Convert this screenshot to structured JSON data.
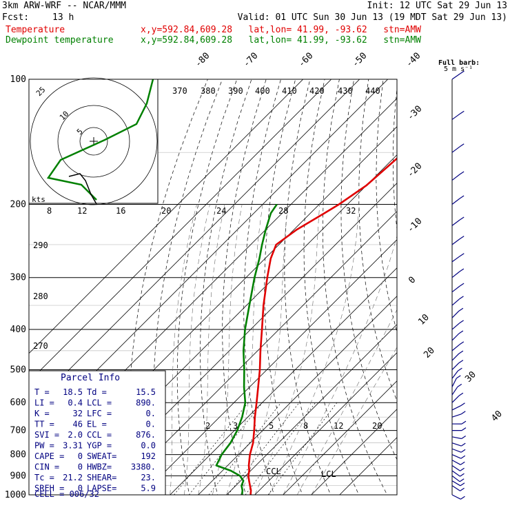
{
  "header": {
    "model": "3km ARW-WRF -- NCAR/MMM",
    "init": "Init: 12 UTC Sat 29 Jun 13",
    "fcst_label": "Fcst:",
    "fcst_value": "13 h",
    "valid": "Valid: 01 UTC Sun 30 Jun 13 (19 MDT Sat 29 Jun 13)",
    "temp_label": "Temperature",
    "dew_label": "Dewpoint temperature",
    "loc_text": "x,y=592.84,609.28   lat,lon= 41.99, -93.62   stn=AMW"
  },
  "colors": {
    "temperature": "#e00000",
    "dewpoint": "#008000",
    "wind": "#000080",
    "hodo": "#008000"
  },
  "chart_data": {
    "type": "line",
    "pressure_labels": [
      "100",
      "200",
      "300",
      "400",
      "500",
      "600",
      "700",
      "800",
      "900",
      "1000"
    ],
    "isotherm_labels": [
      "-80",
      "-70",
      "-60",
      "-50",
      "-40",
      "-30",
      "-20",
      "-10",
      "0",
      "10",
      "20",
      "30",
      "40"
    ],
    "theta_labels": [
      "370",
      "380",
      "390",
      "400",
      "410",
      "420",
      "430",
      "440"
    ],
    "mixing_ratio_labels": [
      "2",
      "3",
      "5",
      "8",
      "12",
      "20"
    ],
    "theta_side_labels": [
      "290",
      "280",
      "270"
    ],
    "hodo_kts_label": "kts",
    "hodo_speed_labels": [
      "8",
      "12",
      "16",
      "20",
      "24",
      "28",
      "32"
    ],
    "hodo_ring_labels": [
      "5",
      "10",
      "25"
    ],
    "ccl_label": "CCL",
    "lcl_label": "LCL",
    "barb_label": "Full barb:",
    "barb_units": "5 m s⁻¹",
    "temperature": [
      [
        1000,
        18.5
      ],
      [
        975,
        17
      ],
      [
        950,
        15
      ],
      [
        925,
        13
      ],
      [
        900,
        11
      ],
      [
        875,
        9.5
      ],
      [
        850,
        7.5
      ],
      [
        800,
        4
      ],
      [
        750,
        1
      ],
      [
        700,
        -3
      ],
      [
        650,
        -7.5
      ],
      [
        600,
        -12
      ],
      [
        550,
        -17
      ],
      [
        500,
        -22.5
      ],
      [
        450,
        -29
      ],
      [
        400,
        -36
      ],
      [
        350,
        -44
      ],
      [
        300,
        -52.5
      ],
      [
        270,
        -58
      ],
      [
        250,
        -61
      ],
      [
        230,
        -59
      ],
      [
        210,
        -55
      ],
      [
        200,
        -53
      ],
      [
        180,
        -50
      ],
      [
        160,
        -49
      ],
      [
        150,
        -48.5
      ],
      [
        130,
        -48
      ],
      [
        120,
        -48
      ],
      [
        100,
        -48
      ]
    ],
    "dewpoint": [
      [
        1000,
        15.5
      ],
      [
        975,
        14
      ],
      [
        950,
        12
      ],
      [
        925,
        11
      ],
      [
        900,
        8
      ],
      [
        875,
        3
      ],
      [
        850,
        -4
      ],
      [
        800,
        -6
      ],
      [
        750,
        -7
      ],
      [
        700,
        -9
      ],
      [
        650,
        -12
      ],
      [
        600,
        -16
      ],
      [
        550,
        -22
      ],
      [
        500,
        -28
      ],
      [
        450,
        -35
      ],
      [
        400,
        -42
      ],
      [
        350,
        -49
      ],
      [
        300,
        -57
      ],
      [
        270,
        -62
      ],
      [
        250,
        -66
      ],
      [
        230,
        -70
      ],
      [
        210,
        -74
      ],
      [
        200,
        -75
      ]
    ],
    "sounding_winds": [
      [
        1000,
        2,
        1
      ],
      [
        950,
        3,
        2
      ],
      [
        925,
        5,
        3
      ],
      [
        900,
        8,
        6
      ],
      [
        875,
        10,
        7
      ],
      [
        850,
        12,
        8
      ],
      [
        825,
        11,
        6
      ],
      [
        800,
        9,
        4
      ],
      [
        775,
        8,
        3
      ],
      [
        750,
        6,
        2
      ],
      [
        725,
        5,
        1
      ],
      [
        700,
        4,
        0
      ],
      [
        675,
        3,
        0
      ],
      [
        650,
        3,
        -1
      ],
      [
        625,
        2,
        -1
      ],
      [
        600,
        2,
        -2
      ],
      [
        575,
        2,
        -3
      ],
      [
        550,
        2,
        -4
      ],
      [
        525,
        3,
        -4
      ],
      [
        500,
        4,
        -4
      ],
      [
        475,
        5,
        -5
      ],
      [
        450,
        6,
        -5
      ],
      [
        425,
        6,
        -6
      ],
      [
        400,
        7,
        -6
      ],
      [
        375,
        7,
        -7
      ],
      [
        350,
        8,
        -7
      ],
      [
        325,
        9,
        -7
      ],
      [
        300,
        10,
        -8
      ],
      [
        275,
        11,
        -8
      ],
      [
        250,
        12,
        -9
      ],
      [
        225,
        12,
        -9
      ],
      [
        200,
        13,
        -10
      ],
      [
        175,
        13,
        -10
      ],
      [
        150,
        12,
        -9
      ],
      [
        125,
        11,
        -8
      ],
      [
        100,
        10,
        -7
      ]
    ],
    "hodograph": [
      [
        -25,
        -12
      ],
      [
        -24,
        -14
      ],
      [
        -23,
        -16
      ],
      [
        -22,
        -17
      ],
      [
        -20,
        -20
      ],
      [
        -20,
        -22
      ],
      [
        -23,
        -24
      ],
      [
        -25,
        -25
      ],
      [
        -26,
        -26
      ],
      [
        -24,
        -28
      ],
      [
        -22,
        -30
      ],
      [
        -20,
        -33
      ],
      [
        -19,
        -37
      ],
      [
        -20,
        -40
      ],
      [
        -22,
        -42
      ],
      [
        -24,
        -44
      ],
      [
        -26,
        -45
      ],
      [
        -30,
        -47
      ],
      [
        -32,
        -50
      ]
    ]
  },
  "parcel": {
    "title": "Parcel Info",
    "rows": [
      {
        "l1": "T   =",
        "v1": "18.5",
        "l2": "Td =",
        "v2": "15.5"
      },
      {
        "l1": "LI  =",
        "v1": "0.4",
        "l2": "LCL =",
        "v2": "890."
      },
      {
        "l1": "K   =",
        "v1": "32",
        "l2": "LFC =",
        "v2": "0."
      },
      {
        "l1": "TT  =",
        "v1": "46",
        "l2": "EL  =",
        "v2": "0."
      },
      {
        "l1": "SVI =",
        "v1": "2.0",
        "l2": "CCL =",
        "v2": "876."
      },
      {
        "l1": "PW  =",
        "v1": "3.31",
        "l2": "YGP =",
        "v2": "0.0"
      },
      {
        "l1": "CAPE =",
        "v1": "0",
        "l2": "SWEAT=",
        "v2": "192"
      },
      {
        "l1": "CIN  =",
        "v1": "0",
        "l2": "HWBZ=",
        "v2": "3380."
      },
      {
        "l1": "Tc  =",
        "v1": "21.2",
        "l2": "SHEAR=",
        "v2": "23."
      },
      {
        "l1": "SREH =",
        "v1": "0",
        "l2": "LAPSE=",
        "v2": "5.9"
      }
    ],
    "cell": "CELL = 006/32"
  }
}
